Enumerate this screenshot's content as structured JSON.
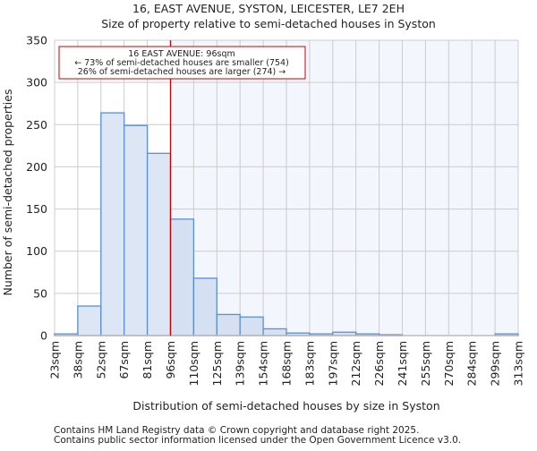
{
  "chart_data": {
    "type": "bar",
    "title": "16, EAST AVENUE, SYSTON, LEICESTER, LE7 2EH",
    "subtitle": "Size of property relative to semi-detached houses in Syston",
    "xlabel": "Distribution of semi-detached houses by size in Syston",
    "ylabel": "Number of semi-detached properties",
    "ylim": [
      0,
      350
    ],
    "yticks": [
      0,
      50,
      100,
      150,
      200,
      250,
      300,
      350
    ],
    "bin_edges": [
      "23sqm",
      "38sqm",
      "52sqm",
      "67sqm",
      "81sqm",
      "96sqm",
      "110sqm",
      "125sqm",
      "139sqm",
      "154sqm",
      "168sqm",
      "183sqm",
      "197sqm",
      "212sqm",
      "226sqm",
      "241sqm",
      "255sqm",
      "270sqm",
      "284sqm",
      "299sqm",
      "313sqm"
    ],
    "values": [
      2,
      35,
      264,
      249,
      216,
      138,
      68,
      25,
      22,
      8,
      3,
      2,
      4,
      2,
      1,
      0,
      0,
      0,
      0,
      2
    ],
    "grid": true,
    "marker_bin_edge_index": 5,
    "annotation": {
      "line1": "16 EAST AVENUE: 96sqm",
      "line2": "← 73% of semi-detached houses are smaller (754)",
      "line3": "26% of semi-detached houses are larger (274) →"
    },
    "colors": {
      "bar_fill": "#dce6f4",
      "bar_fill_right": "#d5e1f3",
      "bar_stroke": "#5b8fd4",
      "marker": "#cc0000",
      "right_bg": "#f3f6fd",
      "grid": "#cccccc"
    }
  },
  "footer": {
    "line1": "Contains HM Land Registry data © Crown copyright and database right 2025.",
    "line2": "Contains public sector information licensed under the Open Government Licence v3.0."
  }
}
